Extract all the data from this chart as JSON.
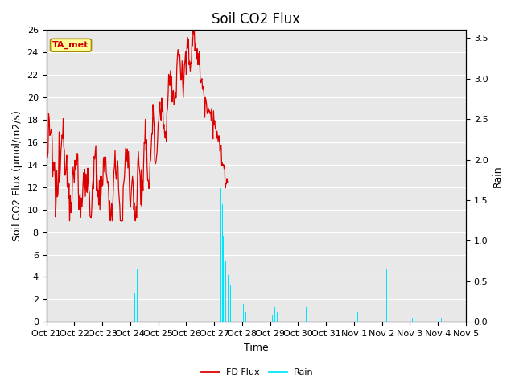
{
  "title": "Soil CO2 Flux",
  "ylabel_left": "Soil CO2 Flux (μmol/m2/s)",
  "ylabel_right": "Rain",
  "xlabel": "Time",
  "ylim_left": [
    0,
    26
  ],
  "ylim_right": [
    0,
    3.6
  ],
  "yticks_left": [
    0,
    2,
    4,
    6,
    8,
    10,
    12,
    14,
    16,
    18,
    20,
    22,
    24,
    26
  ],
  "yticks_right": [
    0.0,
    0.5,
    1.0,
    1.5,
    2.0,
    2.5,
    3.0,
    3.5
  ],
  "annotation_text": "TA_met",
  "annotation_color": "#cc0000",
  "annotation_bg": "#ffff99",
  "line_color_flux": "#dd0000",
  "line_color_rain": "#00e5ff",
  "background_color": "#e8e8e8",
  "title_fontsize": 12,
  "axis_label_fontsize": 9,
  "tick_label_fontsize": 8
}
